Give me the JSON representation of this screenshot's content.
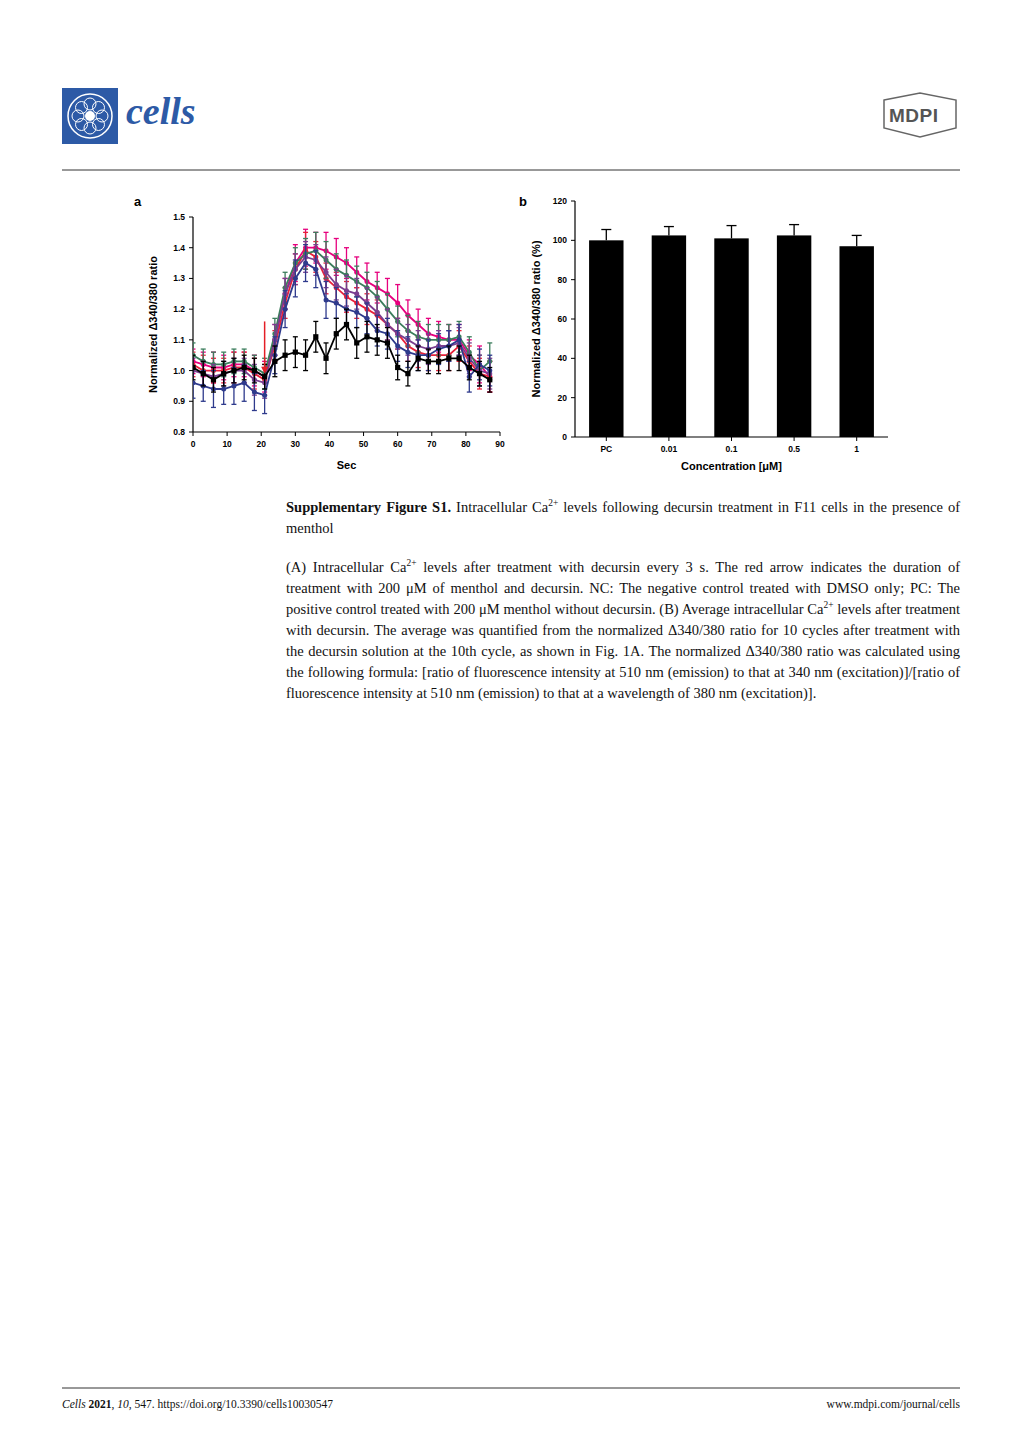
{
  "header": {
    "journal": "cells",
    "publisher": "MDPI"
  },
  "chart_data": [
    {
      "type": "line",
      "panel": "a",
      "x_label": "Sec",
      "y_label": "Normalized Δ340/380 ratio",
      "x": [
        0,
        3,
        6,
        9,
        12,
        15,
        18,
        21,
        24,
        27,
        30,
        33,
        36,
        39,
        42,
        45,
        48,
        51,
        54,
        57,
        60,
        63,
        66,
        69,
        72,
        75,
        78,
        81,
        84,
        87
      ],
      "xlim": [
        0,
        90
      ],
      "xticks": [
        0,
        10,
        20,
        30,
        40,
        50,
        60,
        70,
        80,
        90
      ],
      "ylim": [
        0.8,
        1.5
      ],
      "yticks": [
        0.8,
        0.9,
        {
          "value": 1,
          "label": "1.0"
        },
        1.1,
        1.2,
        1.3,
        1.4,
        1.5
      ],
      "arrow": {
        "x": 21,
        "y": [
          1.16,
          0.99
        ],
        "color": "#e41e26"
      },
      "series": [
        {
          "color": "#e6007e",
          "marker": "circle",
          "values": [
            1.03,
            1.02,
            1.01,
            1.01,
            1.02,
            1.02,
            1.0,
            0.98,
            1.1,
            1.25,
            1.35,
            1.4,
            1.4,
            1.39,
            1.37,
            1.35,
            1.32,
            1.29,
            1.27,
            1.25,
            1.22,
            1.18,
            1.15,
            1.12,
            1.11,
            1.1,
            1.1,
            1.05,
            1.02,
            0.98
          ],
          "errors": [
            0.04,
            0.04,
            0.05,
            0.04,
            0.04,
            0.04,
            0.05,
            0.05,
            0.05,
            0.05,
            0.06,
            0.06,
            0.05,
            0.06,
            0.06,
            0.05,
            0.05,
            0.06,
            0.05,
            0.05,
            0.06,
            0.05,
            0.05,
            0.05,
            0.05,
            0.05,
            0.05,
            0.05,
            0.06,
            0.05
          ]
        },
        {
          "color": "#e8203a",
          "marker": "circle",
          "values": [
            1.02,
            1.0,
            1.0,
            1.0,
            1.01,
            1.01,
            0.99,
            0.97,
            1.08,
            1.22,
            1.33,
            1.39,
            1.37,
            1.3,
            1.27,
            1.24,
            1.22,
            1.2,
            1.18,
            1.15,
            1.12,
            1.08,
            1.06,
            1.05,
            1.05,
            1.05,
            1.08,
            1.03,
            0.99,
            0.98
          ],
          "errors": [
            0.04,
            0.05,
            0.04,
            0.04,
            0.05,
            0.05,
            0.05,
            0.05,
            0.05,
            0.05,
            0.05,
            0.06,
            0.05,
            0.05,
            0.05,
            0.05,
            0.05,
            0.05,
            0.05,
            0.05,
            0.05,
            0.05,
            0.05,
            0.05,
            0.05,
            0.05,
            0.05,
            0.05,
            0.05,
            0.05
          ]
        },
        {
          "color": "#3b7d5c",
          "marker": "circle",
          "values": [
            1.05,
            1.03,
            1.02,
            1.02,
            1.03,
            1.03,
            1.01,
            0.99,
            1.12,
            1.27,
            1.35,
            1.38,
            1.39,
            1.36,
            1.33,
            1.31,
            1.29,
            1.27,
            1.24,
            1.2,
            1.16,
            1.13,
            1.11,
            1.1,
            1.1,
            1.1,
            1.11,
            1.06,
            1.0,
            1.03
          ],
          "errors": [
            0.04,
            0.04,
            0.04,
            0.04,
            0.04,
            0.04,
            0.04,
            0.05,
            0.05,
            0.05,
            0.05,
            0.05,
            0.06,
            0.06,
            0.05,
            0.05,
            0.05,
            0.05,
            0.05,
            0.05,
            0.05,
            0.05,
            0.05,
            0.05,
            0.05,
            0.05,
            0.05,
            0.05,
            0.05,
            0.06
          ]
        },
        {
          "color": "#7a3d8f",
          "marker": "circle",
          "values": [
            1.0,
            0.99,
            0.98,
            0.99,
            1.0,
            1.0,
            0.97,
            0.96,
            1.1,
            1.25,
            1.33,
            1.37,
            1.36,
            1.32,
            1.28,
            1.26,
            1.25,
            1.22,
            1.19,
            1.15,
            1.12,
            1.1,
            1.08,
            1.07,
            1.08,
            1.08,
            1.09,
            1.04,
            1.0,
            0.99
          ],
          "errors": [
            0.04,
            0.04,
            0.04,
            0.04,
            0.04,
            0.04,
            0.05,
            0.05,
            0.05,
            0.05,
            0.05,
            0.05,
            0.05,
            0.05,
            0.05,
            0.05,
            0.05,
            0.05,
            0.05,
            0.05,
            0.05,
            0.05,
            0.05,
            0.05,
            0.05,
            0.05,
            0.05,
            0.05,
            0.05,
            0.05
          ]
        },
        {
          "color": "#2e3a8c",
          "marker": "circle",
          "values": [
            0.96,
            0.95,
            0.94,
            0.94,
            0.95,
            0.96,
            0.93,
            0.92,
            1.05,
            1.2,
            1.3,
            1.35,
            1.33,
            1.23,
            1.22,
            1.2,
            1.19,
            1.17,
            1.13,
            1.12,
            1.08,
            1.06,
            1.05,
            1.05,
            1.07,
            1.08,
            1.1,
            0.98,
            1.02,
            1.0
          ],
          "errors": [
            0.05,
            0.05,
            0.06,
            0.05,
            0.06,
            0.06,
            0.06,
            0.06,
            0.06,
            0.06,
            0.06,
            0.06,
            0.06,
            0.06,
            0.05,
            0.05,
            0.05,
            0.05,
            0.05,
            0.05,
            0.05,
            0.05,
            0.05,
            0.05,
            0.05,
            0.05,
            0.05,
            0.05,
            0.05,
            0.05
          ]
        },
        {
          "color": "#000000",
          "marker": "square",
          "values": [
            1.01,
            0.99,
            0.97,
            0.99,
            1.0,
            1.01,
            1.0,
            0.98,
            1.03,
            1.05,
            1.06,
            1.05,
            1.11,
            1.04,
            1.12,
            1.15,
            1.09,
            1.11,
            1.1,
            1.09,
            1.01,
            0.99,
            1.04,
            1.03,
            1.03,
            1.04,
            1.04,
            1.01,
            0.99,
            0.97
          ],
          "errors": [
            0.04,
            0.04,
            0.04,
            0.04,
            0.04,
            0.04,
            0.04,
            0.04,
            0.05,
            0.05,
            0.05,
            0.05,
            0.05,
            0.05,
            0.05,
            0.05,
            0.05,
            0.05,
            0.05,
            0.05,
            0.04,
            0.04,
            0.04,
            0.04,
            0.04,
            0.04,
            0.04,
            0.04,
            0.04,
            0.04
          ]
        }
      ]
    },
    {
      "type": "bar",
      "panel": "b",
      "x_label": "Concentration [μM]",
      "y_label": "Normalized Δ340/380 ratio (%)",
      "categories": [
        "PC",
        "0.01",
        "0.1",
        "0.5",
        "1"
      ],
      "values": [
        100,
        102.5,
        101,
        102.5,
        97
      ],
      "errors": [
        5.5,
        4.5,
        6.5,
        5.5,
        5.5
      ],
      "color": "#000000",
      "ylim": [
        0,
        120
      ],
      "yticks": [
        0,
        20,
        40,
        60,
        80,
        100,
        120
      ]
    }
  ],
  "caption": {
    "title": [
      {
        "t": "Supplementary Figure S1.",
        "s": "b"
      },
      {
        "t": " Intracellular Ca"
      },
      {
        "t": "2+",
        "s": "sup"
      },
      {
        "t": " levels following decursin treatment in F11 cells in the presence of menthol"
      }
    ],
    "body": [
      {
        "t": "(A) Intracellular Ca"
      },
      {
        "t": "2+",
        "s": "sup"
      },
      {
        "t": " levels after treatment with decursin every 3 s. The red arrow indicates the duration of treatment with 200 μM of menthol and decursin. NC: The negative control treated with DMSO only; PC: The positive control treated with 200 μM menthol without decursin. (B) Average intracellular Ca"
      },
      {
        "t": "2+",
        "s": "sup"
      },
      {
        "t": " levels after treatment with decursin. The average was quantified from the normalized Δ340/380 ratio for 10 cycles after treatment with the decursin solution at the 10th cycle, as shown in Fig. 1A. The normalized Δ340/380 ratio was calculated using the following formula: [ratio of fluorescence intensity at 510 nm (emission) to that at 340 nm (excitation)]/[ratio of fluorescence intensity at 510 nm (emission) to that at a wavelength of 380 nm (excitation)]."
      }
    ]
  },
  "footer": {
    "citation": [
      {
        "t": "Cells",
        "s": "i"
      },
      {
        "t": " "
      },
      {
        "t": "2021",
        "s": "b"
      },
      {
        "t": ", "
      },
      {
        "t": "10",
        "s": "i"
      },
      {
        "t": ", 547. https://doi.org/10.3390/cells10030547"
      }
    ],
    "url": "www.mdpi.com/journal/cells"
  }
}
